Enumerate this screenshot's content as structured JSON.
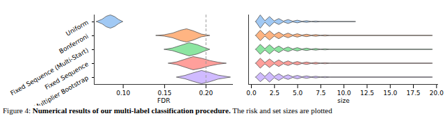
{
  "chart_data": [
    {
      "type": "violin",
      "orientation": "horizontal",
      "categories": [
        "Uniform",
        "Bonferroni",
        "Fixed Sequence (Multi-Start)",
        "Fixed Sequence",
        "Multiplier Bootstrap"
      ],
      "colors": [
        "#a1c9f4",
        "#ffb482",
        "#8de5a1",
        "#ff9f9b",
        "#d0bbff"
      ],
      "x_label": "FDR",
      "xlim": [
        0.065,
        0.233
      ],
      "xticks": [
        {
          "value": 0.1,
          "label": "0.10"
        },
        {
          "value": 0.15,
          "label": "0.15"
        },
        {
          "value": 0.2,
          "label": "0.20"
        }
      ],
      "reference_line": {
        "value": 0.2,
        "line_style": "dashed"
      },
      "violins": [
        {
          "x": [
            0.068,
            0.075,
            0.08,
            0.085,
            0.09,
            0.095,
            0.1
          ],
          "density": [
            0,
            0.35,
            0.8,
            1,
            0.75,
            0.3,
            0
          ]
        },
        {
          "x": [
            0.14,
            0.15,
            0.16,
            0.17,
            0.177,
            0.185,
            0.195,
            0.205
          ],
          "density": [
            0,
            0.1,
            0.35,
            0.8,
            1,
            0.7,
            0.2,
            0
          ]
        },
        {
          "x": [
            0.15,
            0.16,
            0.17,
            0.18,
            0.19,
            0.198,
            0.205
          ],
          "density": [
            0,
            0.2,
            0.6,
            1,
            0.7,
            0.3,
            0
          ]
        },
        {
          "x": [
            0.155,
            0.165,
            0.175,
            0.185,
            0.195,
            0.205,
            0.215,
            0.225
          ],
          "density": [
            0,
            0.2,
            0.6,
            1,
            0.75,
            0.4,
            0.15,
            0
          ]
        },
        {
          "x": [
            0.165,
            0.175,
            0.185,
            0.195,
            0.205,
            0.215,
            0.23
          ],
          "density": [
            0,
            0.25,
            0.65,
            1,
            0.7,
            0.3,
            0
          ]
        }
      ]
    },
    {
      "type": "violin",
      "orientation": "horizontal",
      "tick_labels": "x",
      "colors": [
        "#a1c9f4",
        "#ffb482",
        "#8de5a1",
        "#ff9f9b",
        "#d0bbff"
      ],
      "x_label": "size",
      "xlim": [
        -0.3,
        20.2
      ],
      "xticks": [
        {
          "value": 0,
          "label": "0.0"
        },
        2.5,
        {
          "value": 5,
          "label": "5.0"
        },
        7.5,
        {
          "value": 10,
          "label": "10.0"
        },
        12.5,
        {
          "value": 15,
          "label": "15.0"
        },
        17.5,
        {
          "value": 20,
          "label": "20.0"
        }
      ],
      "violins": [
        {
          "x": [
            0.5,
            1,
            1.5,
            2,
            2.5,
            3,
            3.5,
            4,
            4.5,
            5,
            5.5,
            6,
            6.5,
            7,
            7.5,
            11.2,
            11.3
          ],
          "density": [
            0,
            1,
            0.12,
            0.75,
            0.1,
            0.45,
            0.06,
            0.3,
            0.05,
            0.2,
            0.04,
            0.12,
            0.03,
            0.08,
            0.02,
            0.02,
            0
          ]
        },
        {
          "x": [
            0.5,
            1,
            1.5,
            2,
            2.5,
            3,
            3.5,
            4,
            4.5,
            5,
            5.5,
            6,
            6.5,
            7,
            7.5,
            8,
            8.5,
            19.5,
            19.6
          ],
          "density": [
            0,
            0.8,
            0.1,
            0.7,
            0.1,
            0.5,
            0.08,
            0.35,
            0.06,
            0.25,
            0.05,
            0.18,
            0.04,
            0.12,
            0.03,
            0.08,
            0.02,
            0.02,
            0
          ]
        },
        {
          "x": [
            0.5,
            1,
            1.5,
            2,
            2.5,
            3,
            3.5,
            4,
            4.5,
            5,
            5.5,
            6,
            6.5,
            7,
            7.5,
            8,
            8.5,
            19.5,
            19.6
          ],
          "density": [
            0,
            0.75,
            0.1,
            0.7,
            0.1,
            0.5,
            0.08,
            0.35,
            0.06,
            0.25,
            0.05,
            0.18,
            0.04,
            0.12,
            0.03,
            0.08,
            0.02,
            0.02,
            0
          ]
        },
        {
          "x": [
            0.5,
            1,
            1.5,
            2,
            2.5,
            3,
            3.5,
            4,
            4.5,
            5,
            5.5,
            6,
            6.5,
            7,
            7.5,
            8,
            8.5,
            19.5,
            19.6
          ],
          "density": [
            0,
            0.75,
            0.1,
            0.65,
            0.1,
            0.5,
            0.08,
            0.35,
            0.06,
            0.25,
            0.05,
            0.18,
            0.04,
            0.12,
            0.03,
            0.08,
            0.02,
            0.02,
            0
          ]
        },
        {
          "x": [
            0.5,
            1,
            1.5,
            2,
            2.5,
            3,
            3.5,
            4,
            4.5,
            5,
            5.5,
            6,
            6.5,
            7,
            7.5,
            8,
            8.5,
            19.5,
            19.6
          ],
          "density": [
            0,
            0.7,
            0.1,
            0.75,
            0.1,
            0.5,
            0.08,
            0.35,
            0.06,
            0.25,
            0.05,
            0.18,
            0.04,
            0.12,
            0.03,
            0.08,
            0.02,
            0.02,
            0
          ]
        }
      ]
    }
  ],
  "caption": {
    "prefix": "Figure 4:",
    "bold": "Numerical results of our multi-label classification procedure.",
    "text": "The risk and set sizes are plotted"
  }
}
